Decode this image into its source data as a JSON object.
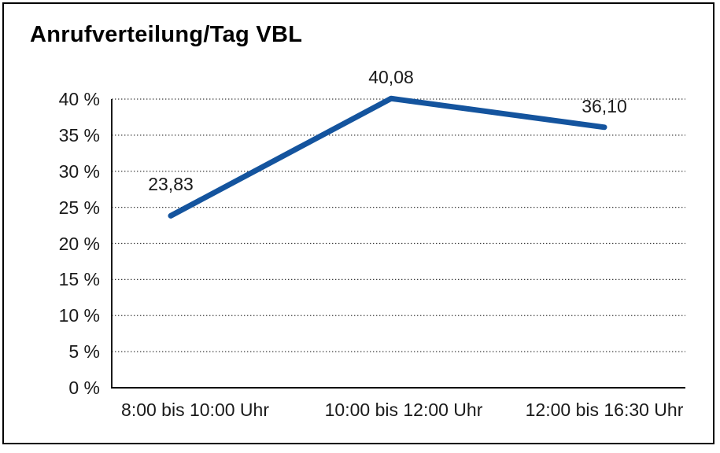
{
  "page": {
    "background_color": "#ffffff",
    "frame_border_color": "#000000"
  },
  "chart_data": {
    "type": "line",
    "title": "Anrufverteilung/Tag VBL",
    "categories": [
      "8:00 bis 10:00 Uhr",
      "10:00 bis 12:00 Uhr",
      "12:00 bis 16:30 Uhr"
    ],
    "series": [
      {
        "name": "Anrufverteilung/Tag VBL",
        "values": [
          23.83,
          40.08,
          36.1
        ],
        "color": "#14549E"
      }
    ],
    "data_labels": [
      "23,83",
      "40,08",
      "36,10"
    ],
    "xlabel": "",
    "ylabel": "",
    "y_axis": {
      "range": [
        0,
        40
      ],
      "tick_step": 5,
      "ticks": [
        0,
        5,
        10,
        15,
        20,
        25,
        30,
        35,
        40
      ],
      "tick_labels": [
        "0 %",
        "5 %",
        "10 %",
        "15 %",
        "20 %",
        "25 %",
        "30 %",
        "35 %",
        "40 %"
      ]
    },
    "grid": {
      "horizontal": true,
      "style": "dotted",
      "color": "#3a3a3a"
    },
    "axis_color": "#000000",
    "legend": "none"
  }
}
